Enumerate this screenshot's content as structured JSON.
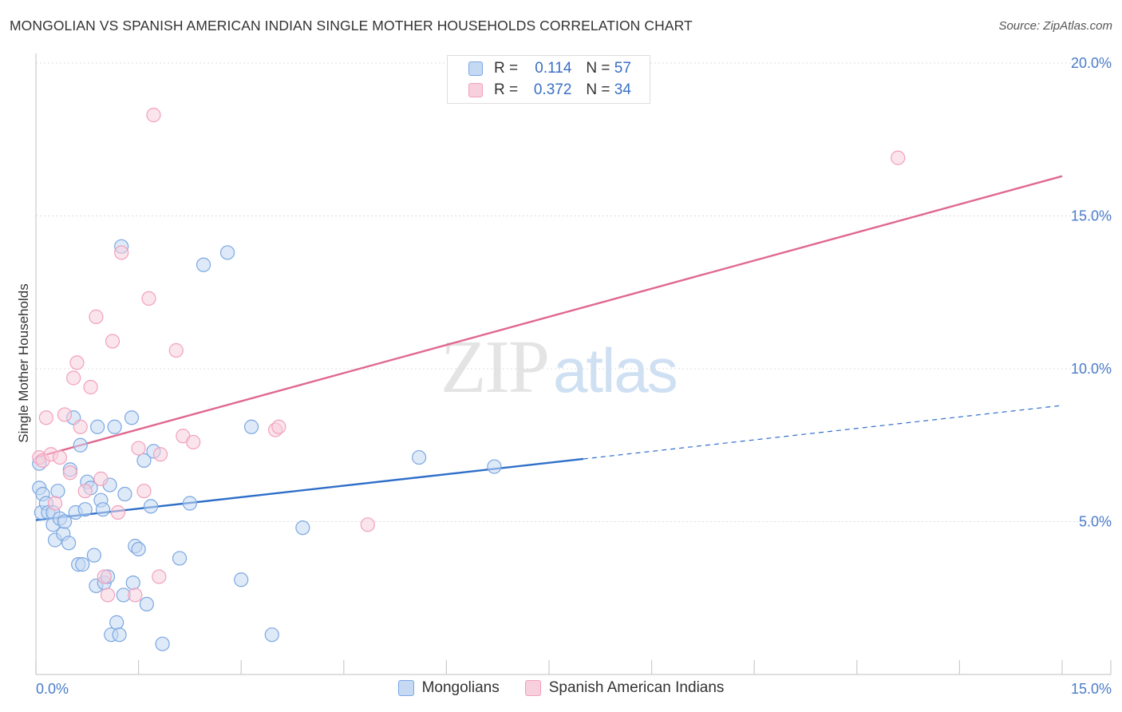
{
  "title": "MONGOLIAN VS SPANISH AMERICAN INDIAN SINGLE MOTHER HOUSEHOLDS CORRELATION CHART",
  "source": "Source: ZipAtlas.com",
  "watermark": {
    "zip": "ZIP",
    "atlas": "atlas"
  },
  "legend": {
    "r_label": "R =",
    "n_label": "N =",
    "rows": [
      {
        "r": "0.114",
        "n": "57",
        "color": "#7ba7e2"
      },
      {
        "r": "0.372",
        "n": "34",
        "color": "#f2a0bb"
      }
    ]
  },
  "chart_data": {
    "type": "scatter",
    "title": "MONGOLIAN VS SPANISH AMERICAN INDIAN SINGLE MOTHER HOUSEHOLDS CORRELATION CHART",
    "xlabel": "",
    "ylabel": "Single Mother Households",
    "xlim": [
      0,
      15
    ],
    "ylim": [
      0,
      20
    ],
    "x_tick_labels": [
      "0.0%",
      "15.0%"
    ],
    "y_ticks": [
      5,
      10,
      15,
      20
    ],
    "y_tick_labels": [
      "5.0%",
      "10.0%",
      "15.0%",
      "20.0%"
    ],
    "grid": true,
    "legend_position": "top-center",
    "series": [
      {
        "name": "Mongolians",
        "color": "#7ba7e2",
        "fill": "#c5d9f3",
        "r": 0.114,
        "n": 57,
        "trend": {
          "x0": 0,
          "y0": 5.05,
          "x1": 8.0,
          "y1": 7.05,
          "dash_to_x": 15,
          "dash_to_y": 8.8,
          "stroke": "#2f6fc9"
        },
        "points": [
          [
            0.05,
            6.9
          ],
          [
            0.05,
            6.1
          ],
          [
            0.08,
            5.3
          ],
          [
            0.1,
            5.9
          ],
          [
            0.15,
            5.6
          ],
          [
            0.18,
            5.3
          ],
          [
            0.25,
            5.3
          ],
          [
            0.25,
            4.9
          ],
          [
            0.28,
            4.4
          ],
          [
            0.32,
            6.0
          ],
          [
            0.35,
            5.1
          ],
          [
            0.4,
            4.6
          ],
          [
            0.42,
            5.0
          ],
          [
            0.48,
            4.3
          ],
          [
            0.5,
            6.7
          ],
          [
            0.55,
            8.4
          ],
          [
            0.58,
            5.3
          ],
          [
            0.62,
            3.6
          ],
          [
            0.65,
            7.5
          ],
          [
            0.68,
            3.6
          ],
          [
            0.72,
            5.4
          ],
          [
            0.75,
            6.3
          ],
          [
            0.8,
            6.1
          ],
          [
            0.85,
            3.9
          ],
          [
            0.88,
            2.9
          ],
          [
            0.9,
            8.1
          ],
          [
            0.95,
            5.7
          ],
          [
            0.98,
            5.4
          ],
          [
            1.0,
            3.0
          ],
          [
            1.05,
            3.2
          ],
          [
            1.08,
            6.2
          ],
          [
            1.1,
            1.3
          ],
          [
            1.15,
            8.1
          ],
          [
            1.18,
            1.7
          ],
          [
            1.22,
            1.3
          ],
          [
            1.25,
            14.0
          ],
          [
            1.28,
            2.6
          ],
          [
            1.3,
            5.9
          ],
          [
            1.4,
            8.4
          ],
          [
            1.42,
            3.0
          ],
          [
            1.45,
            4.2
          ],
          [
            1.5,
            4.1
          ],
          [
            1.58,
            7.0
          ],
          [
            1.62,
            2.3
          ],
          [
            1.68,
            5.5
          ],
          [
            1.72,
            7.3
          ],
          [
            1.85,
            1.0
          ],
          [
            2.1,
            3.8
          ],
          [
            2.25,
            5.6
          ],
          [
            2.45,
            13.4
          ],
          [
            2.8,
            13.8
          ],
          [
            3.0,
            3.1
          ],
          [
            3.15,
            8.1
          ],
          [
            3.45,
            1.3
          ],
          [
            3.9,
            4.8
          ],
          [
            5.6,
            7.1
          ],
          [
            6.7,
            6.8
          ]
        ]
      },
      {
        "name": "Spanish American Indians",
        "color": "#f2a0bb",
        "fill": "#f8cfdc",
        "r": 0.372,
        "n": 34,
        "trend": {
          "x0": 0,
          "y0": 7.1,
          "x1": 15,
          "y1": 16.3,
          "stroke": "#e0688f"
        },
        "points": [
          [
            0.05,
            7.1
          ],
          [
            0.1,
            7.0
          ],
          [
            0.15,
            8.4
          ],
          [
            0.22,
            7.2
          ],
          [
            0.28,
            5.6
          ],
          [
            0.35,
            7.1
          ],
          [
            0.42,
            8.5
          ],
          [
            0.5,
            6.6
          ],
          [
            0.55,
            9.7
          ],
          [
            0.6,
            10.2
          ],
          [
            0.65,
            8.1
          ],
          [
            0.72,
            6.0
          ],
          [
            0.8,
            9.4
          ],
          [
            0.88,
            11.7
          ],
          [
            0.95,
            6.4
          ],
          [
            1.0,
            3.2
          ],
          [
            1.05,
            2.6
          ],
          [
            1.12,
            10.9
          ],
          [
            1.2,
            5.3
          ],
          [
            1.25,
            13.8
          ],
          [
            1.45,
            2.6
          ],
          [
            1.5,
            7.4
          ],
          [
            1.58,
            6.0
          ],
          [
            1.65,
            12.3
          ],
          [
            1.72,
            18.3
          ],
          [
            1.8,
            3.2
          ],
          [
            1.82,
            7.2
          ],
          [
            2.05,
            10.6
          ],
          [
            2.15,
            7.8
          ],
          [
            2.3,
            7.6
          ],
          [
            3.5,
            8.0
          ],
          [
            3.55,
            8.1
          ],
          [
            4.85,
            4.9
          ],
          [
            12.6,
            16.9
          ]
        ]
      }
    ]
  }
}
